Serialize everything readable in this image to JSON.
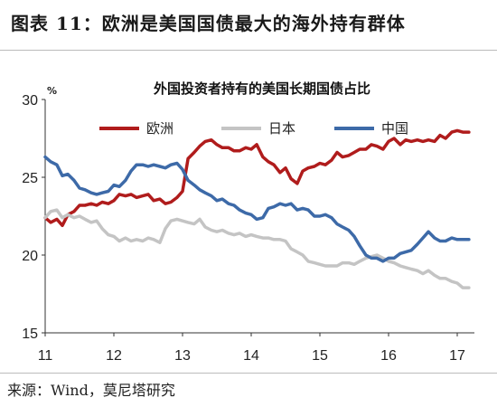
{
  "figure_title": "图表 11：欧洲是美国国债最大的海外持有群体",
  "source": "来源：Wind，莫尼塔研究",
  "chart_data": {
    "type": "line",
    "title": "外国投资者持有的美国长期国债占比",
    "ylabel": "%",
    "xlabel": "",
    "xlim": [
      11,
      17.25
    ],
    "ylim": [
      15,
      30
    ],
    "xticks": [
      "11",
      "12",
      "13",
      "14",
      "15",
      "16",
      "17"
    ],
    "yticks": [
      "15",
      "20",
      "25",
      "30"
    ],
    "grid": false,
    "legend_position": "top",
    "series": [
      {
        "name": "欧洲",
        "color": "#b01c1c",
        "points": [
          [
            11.0,
            22.4
          ],
          [
            11.08,
            22.1
          ],
          [
            11.17,
            22.3
          ],
          [
            11.25,
            21.9
          ],
          [
            11.33,
            22.6
          ],
          [
            11.42,
            22.8
          ],
          [
            11.5,
            23.2
          ],
          [
            11.58,
            23.2
          ],
          [
            11.67,
            23.3
          ],
          [
            11.75,
            23.2
          ],
          [
            11.83,
            23.4
          ],
          [
            11.92,
            23.3
          ],
          [
            12.0,
            23.5
          ],
          [
            12.08,
            23.9
          ],
          [
            12.17,
            23.8
          ],
          [
            12.25,
            23.9
          ],
          [
            12.33,
            23.7
          ],
          [
            12.42,
            23.8
          ],
          [
            12.5,
            23.9
          ],
          [
            12.58,
            23.5
          ],
          [
            12.67,
            23.6
          ],
          [
            12.75,
            23.3
          ],
          [
            12.83,
            23.4
          ],
          [
            12.92,
            23.7
          ],
          [
            13.0,
            24.1
          ],
          [
            13.08,
            26.2
          ],
          [
            13.17,
            26.6
          ],
          [
            13.25,
            27.0
          ],
          [
            13.33,
            27.3
          ],
          [
            13.42,
            27.4
          ],
          [
            13.5,
            27.1
          ],
          [
            13.58,
            26.9
          ],
          [
            13.67,
            26.9
          ],
          [
            13.75,
            26.7
          ],
          [
            13.83,
            26.7
          ],
          [
            13.92,
            26.9
          ],
          [
            14.0,
            26.8
          ],
          [
            14.08,
            27.1
          ],
          [
            14.17,
            26.3
          ],
          [
            14.25,
            26.0
          ],
          [
            14.33,
            25.8
          ],
          [
            14.42,
            25.3
          ],
          [
            14.5,
            25.6
          ],
          [
            14.58,
            24.9
          ],
          [
            14.67,
            24.6
          ],
          [
            14.75,
            25.4
          ],
          [
            14.83,
            25.6
          ],
          [
            14.92,
            25.7
          ],
          [
            15.0,
            25.9
          ],
          [
            15.08,
            25.8
          ],
          [
            15.17,
            26.1
          ],
          [
            15.25,
            26.6
          ],
          [
            15.33,
            26.3
          ],
          [
            15.42,
            26.4
          ],
          [
            15.5,
            26.6
          ],
          [
            15.58,
            26.8
          ],
          [
            15.67,
            26.8
          ],
          [
            15.75,
            27.1
          ],
          [
            15.83,
            27.0
          ],
          [
            15.92,
            26.8
          ],
          [
            16.0,
            27.3
          ],
          [
            16.08,
            27.5
          ],
          [
            16.17,
            27.1
          ],
          [
            16.25,
            27.4
          ],
          [
            16.33,
            27.3
          ],
          [
            16.42,
            27.4
          ],
          [
            16.5,
            27.3
          ],
          [
            16.58,
            27.4
          ],
          [
            16.67,
            27.3
          ],
          [
            16.75,
            27.7
          ],
          [
            16.83,
            27.5
          ],
          [
            16.92,
            27.9
          ],
          [
            17.0,
            28.0
          ],
          [
            17.08,
            27.9
          ],
          [
            17.17,
            27.9
          ]
        ]
      },
      {
        "name": "日本",
        "color": "#c4c4c4",
        "points": [
          [
            11.0,
            22.4
          ],
          [
            11.08,
            22.8
          ],
          [
            11.17,
            22.9
          ],
          [
            11.25,
            22.4
          ],
          [
            11.33,
            22.6
          ],
          [
            11.42,
            22.4
          ],
          [
            11.5,
            22.5
          ],
          [
            11.58,
            22.3
          ],
          [
            11.67,
            22.1
          ],
          [
            11.75,
            22.2
          ],
          [
            11.83,
            21.7
          ],
          [
            11.92,
            21.3
          ],
          [
            12.0,
            21.2
          ],
          [
            12.08,
            20.9
          ],
          [
            12.17,
            21.1
          ],
          [
            12.25,
            20.9
          ],
          [
            12.33,
            21.0
          ],
          [
            12.42,
            20.9
          ],
          [
            12.5,
            21.1
          ],
          [
            12.58,
            21.0
          ],
          [
            12.67,
            20.8
          ],
          [
            12.75,
            21.7
          ],
          [
            12.83,
            22.2
          ],
          [
            12.92,
            22.3
          ],
          [
            13.0,
            22.2
          ],
          [
            13.08,
            22.1
          ],
          [
            13.17,
            22.0
          ],
          [
            13.25,
            22.3
          ],
          [
            13.33,
            21.8
          ],
          [
            13.42,
            21.6
          ],
          [
            13.5,
            21.5
          ],
          [
            13.58,
            21.6
          ],
          [
            13.67,
            21.4
          ],
          [
            13.75,
            21.3
          ],
          [
            13.83,
            21.4
          ],
          [
            13.92,
            21.2
          ],
          [
            14.0,
            21.3
          ],
          [
            14.08,
            21.2
          ],
          [
            14.17,
            21.1
          ],
          [
            14.25,
            21.1
          ],
          [
            14.33,
            21.0
          ],
          [
            14.42,
            21.0
          ],
          [
            14.5,
            20.9
          ],
          [
            14.58,
            20.4
          ],
          [
            14.67,
            20.2
          ],
          [
            14.75,
            20.0
          ],
          [
            14.83,
            19.6
          ],
          [
            14.92,
            19.5
          ],
          [
            15.0,
            19.4
          ],
          [
            15.08,
            19.3
          ],
          [
            15.17,
            19.3
          ],
          [
            15.25,
            19.3
          ],
          [
            15.33,
            19.5
          ],
          [
            15.42,
            19.5
          ],
          [
            15.5,
            19.4
          ],
          [
            15.58,
            19.6
          ],
          [
            15.67,
            19.8
          ],
          [
            15.75,
            19.9
          ],
          [
            15.83,
            20.0
          ],
          [
            15.92,
            19.8
          ],
          [
            16.0,
            19.6
          ],
          [
            16.08,
            19.5
          ],
          [
            16.17,
            19.3
          ],
          [
            16.25,
            19.2
          ],
          [
            16.33,
            19.1
          ],
          [
            16.42,
            19.0
          ],
          [
            16.5,
            18.8
          ],
          [
            16.58,
            19.0
          ],
          [
            16.67,
            18.7
          ],
          [
            16.75,
            18.5
          ],
          [
            16.83,
            18.5
          ],
          [
            16.92,
            18.3
          ],
          [
            17.0,
            18.2
          ],
          [
            17.08,
            17.9
          ],
          [
            17.17,
            17.9
          ]
        ]
      },
      {
        "name": "中国",
        "color": "#3d6aa8",
        "points": [
          [
            11.0,
            26.3
          ],
          [
            11.08,
            26.0
          ],
          [
            11.17,
            25.8
          ],
          [
            11.25,
            25.1
          ],
          [
            11.33,
            25.2
          ],
          [
            11.42,
            24.8
          ],
          [
            11.5,
            24.3
          ],
          [
            11.58,
            24.2
          ],
          [
            11.67,
            24.0
          ],
          [
            11.75,
            23.9
          ],
          [
            11.83,
            24.0
          ],
          [
            11.92,
            24.1
          ],
          [
            12.0,
            24.5
          ],
          [
            12.08,
            24.4
          ],
          [
            12.17,
            24.8
          ],
          [
            12.25,
            25.4
          ],
          [
            12.33,
            25.8
          ],
          [
            12.42,
            25.8
          ],
          [
            12.5,
            25.7
          ],
          [
            12.58,
            25.8
          ],
          [
            12.67,
            25.7
          ],
          [
            12.75,
            25.6
          ],
          [
            12.83,
            25.8
          ],
          [
            12.92,
            25.9
          ],
          [
            13.0,
            25.5
          ],
          [
            13.08,
            24.8
          ],
          [
            13.17,
            24.5
          ],
          [
            13.25,
            24.2
          ],
          [
            13.33,
            24.0
          ],
          [
            13.42,
            23.8
          ],
          [
            13.5,
            23.5
          ],
          [
            13.58,
            23.6
          ],
          [
            13.67,
            23.3
          ],
          [
            13.75,
            23.2
          ],
          [
            13.83,
            22.9
          ],
          [
            13.92,
            22.7
          ],
          [
            14.0,
            22.6
          ],
          [
            14.08,
            22.3
          ],
          [
            14.17,
            22.4
          ],
          [
            14.25,
            23.0
          ],
          [
            14.33,
            23.1
          ],
          [
            14.42,
            23.3
          ],
          [
            14.5,
            23.2
          ],
          [
            14.58,
            23.3
          ],
          [
            14.67,
            22.9
          ],
          [
            14.75,
            23.0
          ],
          [
            14.83,
            22.9
          ],
          [
            14.92,
            22.5
          ],
          [
            15.0,
            22.5
          ],
          [
            15.08,
            22.6
          ],
          [
            15.17,
            22.4
          ],
          [
            15.25,
            22.0
          ],
          [
            15.33,
            21.8
          ],
          [
            15.42,
            21.6
          ],
          [
            15.5,
            21.2
          ],
          [
            15.58,
            20.6
          ],
          [
            15.67,
            20.0
          ],
          [
            15.75,
            19.8
          ],
          [
            15.83,
            19.8
          ],
          [
            15.92,
            19.6
          ],
          [
            16.0,
            19.8
          ],
          [
            16.08,
            19.8
          ],
          [
            16.17,
            20.1
          ],
          [
            16.25,
            20.2
          ],
          [
            16.33,
            20.3
          ],
          [
            16.42,
            20.7
          ],
          [
            16.5,
            21.1
          ],
          [
            16.58,
            21.5
          ],
          [
            16.67,
            21.1
          ],
          [
            16.75,
            20.9
          ],
          [
            16.83,
            20.9
          ],
          [
            16.92,
            21.1
          ],
          [
            17.0,
            21.0
          ],
          [
            17.08,
            21.0
          ],
          [
            17.17,
            21.0
          ]
        ]
      }
    ]
  }
}
